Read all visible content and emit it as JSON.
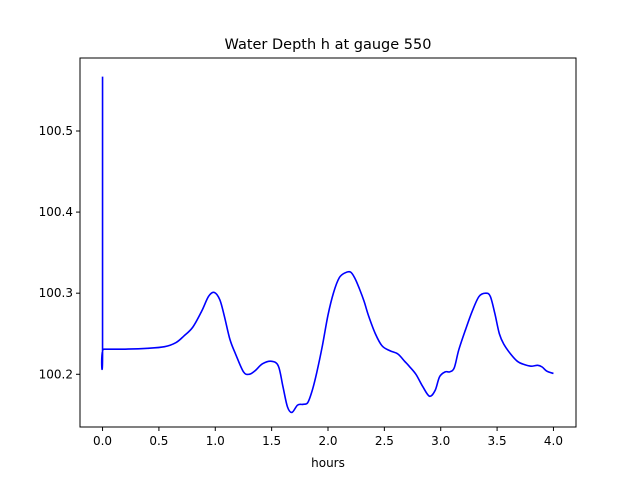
{
  "chart_data": {
    "type": "line",
    "title": "Water Depth h at gauge 550",
    "xlabel": "hours",
    "ylabel": "",
    "xlim": [
      -0.2,
      4.2
    ],
    "ylim": [
      100.135,
      100.59
    ],
    "grid": false,
    "xticks": [
      0.0,
      0.5,
      1.0,
      1.5,
      2.0,
      2.5,
      3.0,
      3.5,
      4.0
    ],
    "xtick_labels": [
      "0.0",
      "0.5",
      "1.0",
      "1.5",
      "2.0",
      "2.5",
      "3.0",
      "3.5",
      "4.0"
    ],
    "yticks": [
      100.2,
      100.3,
      100.4,
      100.5
    ],
    "ytick_labels": [
      "100.2",
      "100.3",
      "100.4",
      "100.5"
    ],
    "colors": {
      "line": "#0000ff",
      "axes": "#000000",
      "background": "#ffffff"
    },
    "series": [
      {
        "x": [
          0.0,
          0.0,
          0.01,
          0.2,
          0.4,
          0.55,
          0.65,
          0.72,
          0.8,
          0.88,
          0.94,
          0.99,
          1.04,
          1.08,
          1.13,
          1.18,
          1.25,
          1.3,
          1.35,
          1.42,
          1.5,
          1.56,
          1.6,
          1.64,
          1.68,
          1.73,
          1.78,
          1.82,
          1.86,
          1.9,
          1.95,
          2.0,
          2.05,
          2.1,
          2.15,
          2.2,
          2.24,
          2.28,
          2.32,
          2.36,
          2.42,
          2.48,
          2.55,
          2.62,
          2.68,
          2.72,
          2.78,
          2.84,
          2.9,
          2.95,
          2.99,
          3.04,
          3.08,
          3.12,
          3.16,
          3.22,
          3.28,
          3.34,
          3.4,
          3.44,
          3.48,
          3.52,
          3.56,
          3.62,
          3.68,
          3.74,
          3.8,
          3.86,
          3.9,
          3.94,
          4.0
        ],
        "y": [
          100.567,
          100.231,
          100.231,
          100.231,
          100.232,
          100.234,
          100.239,
          100.247,
          100.258,
          100.278,
          100.296,
          100.301,
          100.292,
          100.272,
          100.243,
          100.225,
          100.203,
          100.2,
          100.204,
          100.213,
          100.216,
          100.21,
          100.185,
          100.16,
          100.153,
          100.162,
          100.163,
          100.165,
          100.18,
          100.202,
          100.235,
          100.273,
          100.301,
          100.319,
          100.325,
          100.326,
          100.318,
          100.305,
          100.29,
          100.272,
          100.25,
          100.235,
          100.229,
          100.225,
          100.216,
          100.21,
          100.2,
          100.185,
          100.173,
          100.18,
          100.197,
          100.203,
          100.203,
          100.208,
          100.23,
          100.255,
          100.278,
          100.296,
          100.3,
          100.296,
          100.275,
          100.25,
          100.237,
          100.225,
          100.216,
          100.212,
          100.21,
          100.211,
          100.209,
          100.204,
          100.201
        ]
      }
    ]
  }
}
